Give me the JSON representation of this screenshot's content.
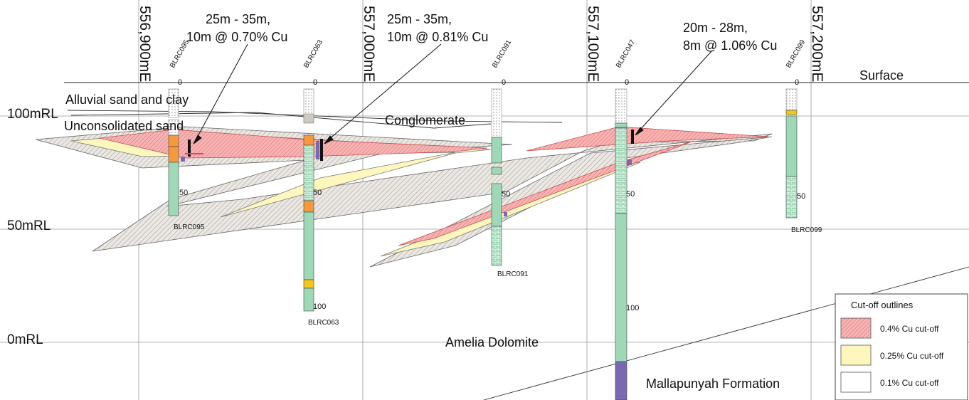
{
  "section": {
    "rl_labels": [
      "100mRL",
      "50mRL",
      "0mRL"
    ],
    "eastings": [
      "556,900mE",
      "557,000mE",
      "557,100mE",
      "557,200mE"
    ],
    "surface_label": "Surface",
    "geology": {
      "alluvial": "Alluvial sand and clay",
      "unconsolidated": "Unconsolidated sand",
      "conglomerate": "Conglomerate",
      "amelia": "Amelia Dolomite",
      "mallapunyah": "Mallapunyah Formation"
    },
    "holes": [
      {
        "id": "BLRC095",
        "top_label": "BLRC095",
        "bottom_label": "BLRC095",
        "depths": [
          "0",
          "50"
        ]
      },
      {
        "id": "BLRC063",
        "top_label": "BLRC063",
        "bottom_label": "BLRC063",
        "depths": [
          "0",
          "50",
          "100"
        ]
      },
      {
        "id": "BLRC091",
        "top_label": "BLRC091",
        "bottom_label": "BLRC091",
        "depths": [
          "0",
          "50"
        ]
      },
      {
        "id": "BLRC047",
        "top_label": "BLRC047",
        "bottom_label": "",
        "depths": [
          "0",
          "50",
          "100"
        ]
      },
      {
        "id": "BLRC099",
        "top_label": "BLRC099",
        "bottom_label": "BLRC099",
        "depths": [
          "0",
          "50"
        ]
      }
    ],
    "intercepts": [
      {
        "line1": "25m - 35m,",
        "line2": "10m @ 0.70% Cu"
      },
      {
        "line1": "25m - 35m,",
        "line2": "10m @ 0.81% Cu"
      },
      {
        "line1": "20m - 28m,",
        "line2": "8m @ 1.06% Cu"
      }
    ]
  },
  "legend": {
    "title": "Cut-off outlines",
    "items": [
      {
        "label": "0.4% Cu cut-off",
        "color": "#f2a6a6"
      },
      {
        "label": "0.25% Cu cut-off",
        "color": "#fdf8c0"
      },
      {
        "label": "0.1% Cu cut-off",
        "color": "#ffffff"
      }
    ]
  },
  "colors": {
    "grey_hatch": "#d6d2cc",
    "red_hatch": "#f4a5a5",
    "yellow": "#fdf7bd",
    "hole_green": "#9fd8b6",
    "hole_orange": "#f59a3c",
    "hole_purple": "#7a68b0"
  }
}
